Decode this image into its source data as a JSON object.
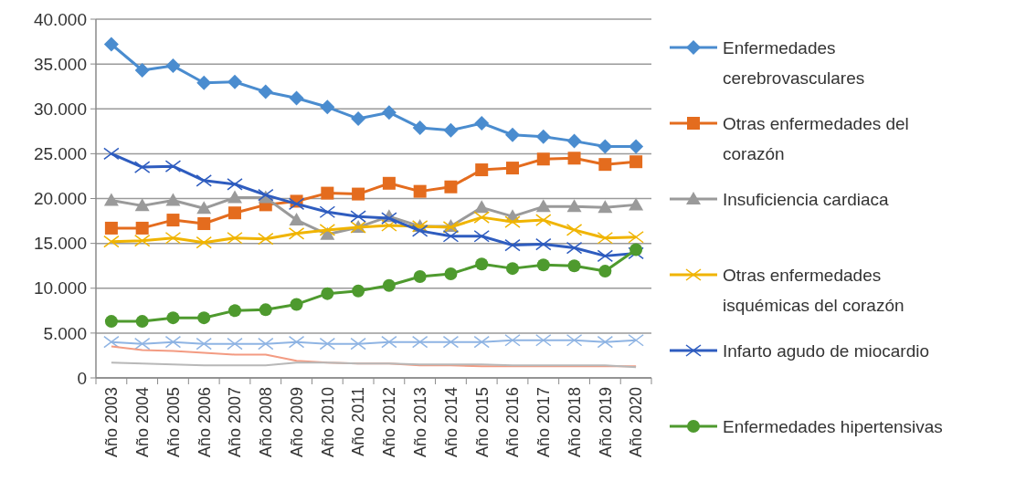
{
  "chart_data": {
    "type": "line",
    "categories": [
      "Año 2003",
      "Año 2004",
      "Año 2005",
      "Año 2006",
      "Año 2007",
      "Año 2008",
      "Año 2009",
      "Año 2010",
      "Año 2011",
      "Año 2012",
      "Año 2013",
      "Año 2014",
      "Año 2015",
      "Año 2016",
      "Año 2017",
      "Año 2018",
      "Año 2019",
      "Año 2020"
    ],
    "ylim": [
      0,
      40000
    ],
    "yticks": [
      {
        "value": 0,
        "label": "0"
      },
      {
        "value": 5000,
        "label": "5.000"
      },
      {
        "value": 10000,
        "label": "10.000"
      },
      {
        "value": 15000,
        "label": "15.000"
      },
      {
        "value": 20000,
        "label": "20.000"
      },
      {
        "value": 25000,
        "label": "25.000"
      },
      {
        "value": 30000,
        "label": "30.000"
      },
      {
        "value": 35000,
        "label": "35.000"
      },
      {
        "value": 40000,
        "label": "40.000"
      }
    ],
    "grid": "y",
    "legend": "right",
    "series": [
      {
        "name": "Enfermedades cerebrovasculares",
        "color": "#4a8ccf",
        "marker": "diamond",
        "values": [
          37200,
          34300,
          34800,
          32900,
          33000,
          31900,
          31200,
          30200,
          28900,
          29600,
          27900,
          27600,
          28400,
          27100,
          26900,
          26400,
          25800,
          25800
        ]
      },
      {
        "name": "Otras enfermedades del corazón",
        "color": "#e46c1e",
        "marker": "square",
        "values": [
          16700,
          16700,
          17600,
          17200,
          18400,
          19300,
          19700,
          20600,
          20500,
          21700,
          20800,
          21300,
          23200,
          23400,
          24400,
          24500,
          23800,
          24100
        ]
      },
      {
        "name": "Insuficiencia cardiaca",
        "color": "#9a9a9a",
        "marker": "triangle",
        "values": [
          19800,
          19200,
          19800,
          18900,
          20100,
          20100,
          17600,
          16000,
          16800,
          18000,
          16900,
          16900,
          19000,
          18000,
          19100,
          19100,
          19000,
          19300
        ]
      },
      {
        "name": "Otras enfermedades isquémicas del corazón",
        "color": "#f0b400",
        "marker": "cross",
        "values": [
          15200,
          15300,
          15600,
          15100,
          15600,
          15500,
          16100,
          16500,
          16800,
          17000,
          16900,
          16800,
          17900,
          17400,
          17600,
          16500,
          15600,
          15700
        ]
      },
      {
        "name": "Infarto agudo de miocardio",
        "color": "#2e5cbf",
        "marker": "cross",
        "values": [
          25000,
          23500,
          23600,
          22000,
          21600,
          20400,
          19400,
          18500,
          18000,
          17800,
          16400,
          15800,
          15800,
          14800,
          14900,
          14500,
          13600,
          13900
        ]
      },
      {
        "name": "Enfermedades hipertensivas",
        "color": "#4e9a2e",
        "marker": "circle",
        "values": [
          6300,
          6300,
          6700,
          6700,
          7500,
          7600,
          8200,
          9400,
          9700,
          10300,
          11300,
          11600,
          12700,
          12200,
          12600,
          12500,
          11900,
          14300
        ]
      },
      {
        "color": "#8fb4e3",
        "marker": "cross",
        "values": [
          4000,
          3800,
          4000,
          3800,
          3800,
          3800,
          4000,
          3800,
          3800,
          4000,
          4000,
          4000,
          4000,
          4200,
          4200,
          4200,
          4000,
          4200
        ]
      },
      {
        "color": "#f39b82",
        "marker": "none",
        "values": [
          3500,
          3100,
          3000,
          2800,
          2600,
          2600,
          1900,
          1700,
          1600,
          1600,
          1400,
          1400,
          1300,
          1300,
          1300,
          1300,
          1300,
          1300
        ]
      },
      {
        "color": "#b8b8b8",
        "marker": "none",
        "values": [
          1700,
          1600,
          1500,
          1400,
          1400,
          1400,
          1700,
          1700,
          1600,
          1600,
          1500,
          1500,
          1500,
          1400,
          1400,
          1400,
          1400,
          1200
        ]
      }
    ]
  }
}
